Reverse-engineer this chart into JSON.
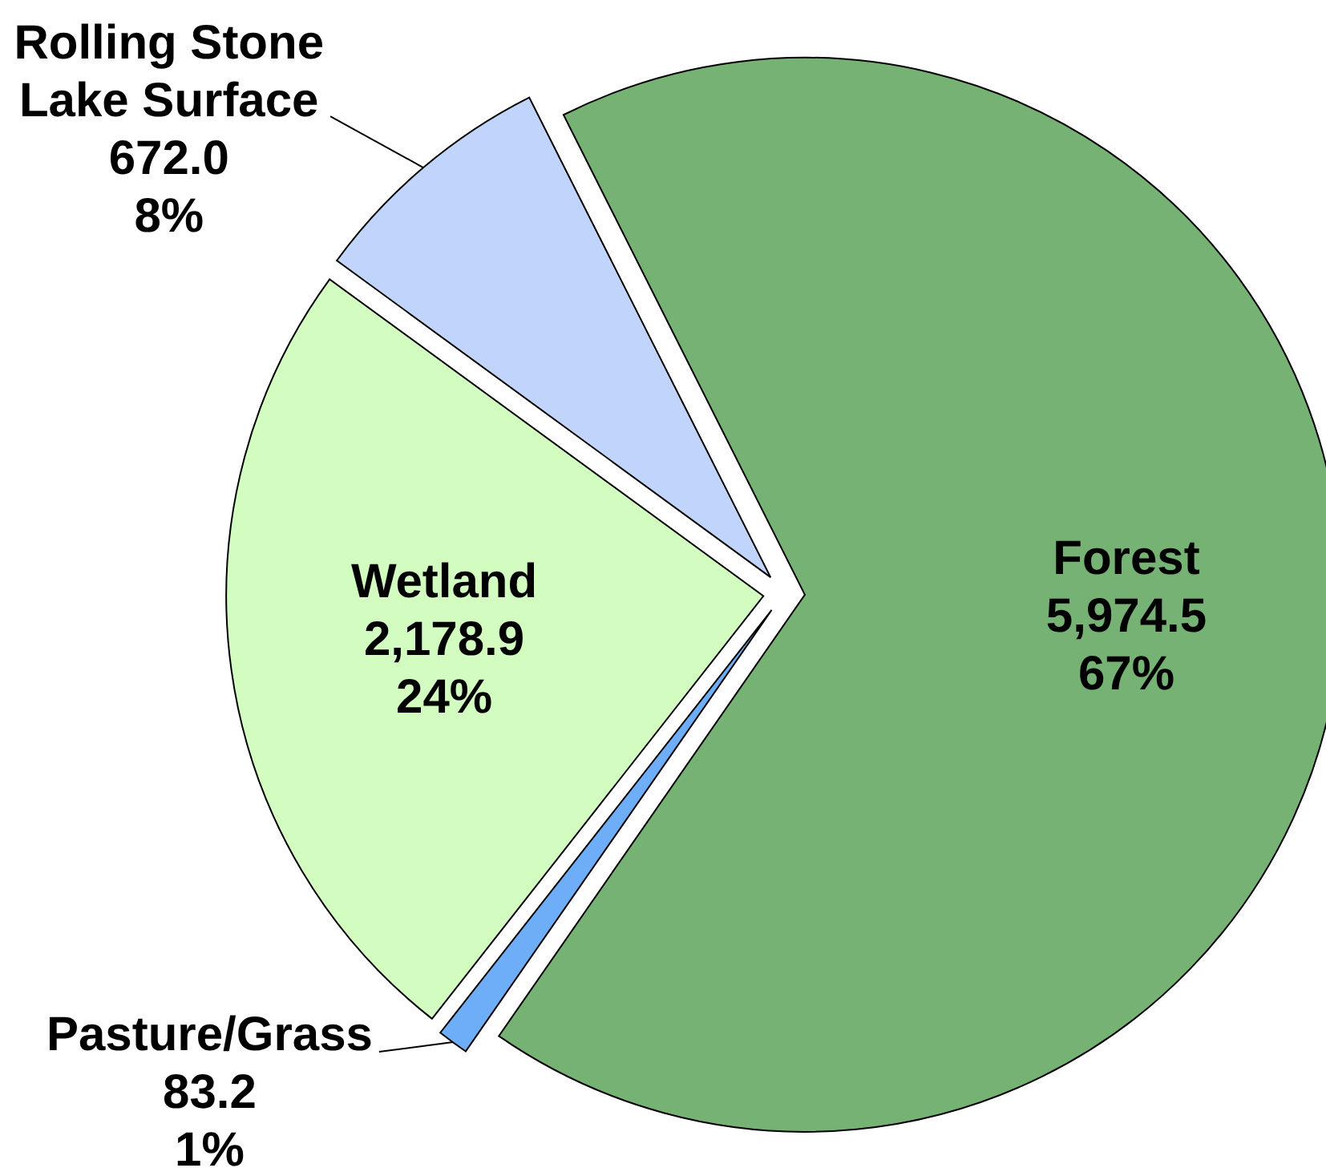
{
  "chart_data": {
    "type": "pie",
    "categories": [
      "Forest",
      "Pasture/Grass",
      "Wetland",
      "Rolling Stone Lake Surface"
    ],
    "values": [
      5974.5,
      83.2,
      2178.9,
      672.0
    ],
    "colors": [
      "#75b274",
      "#6eaef8",
      "#d3fcc0",
      "#c0d4fc"
    ],
    "value_labels": [
      "5,974.5\n67%",
      "83.2\n1%",
      "2,178.9\n24%",
      "672.0\n8%"
    ]
  }
}
